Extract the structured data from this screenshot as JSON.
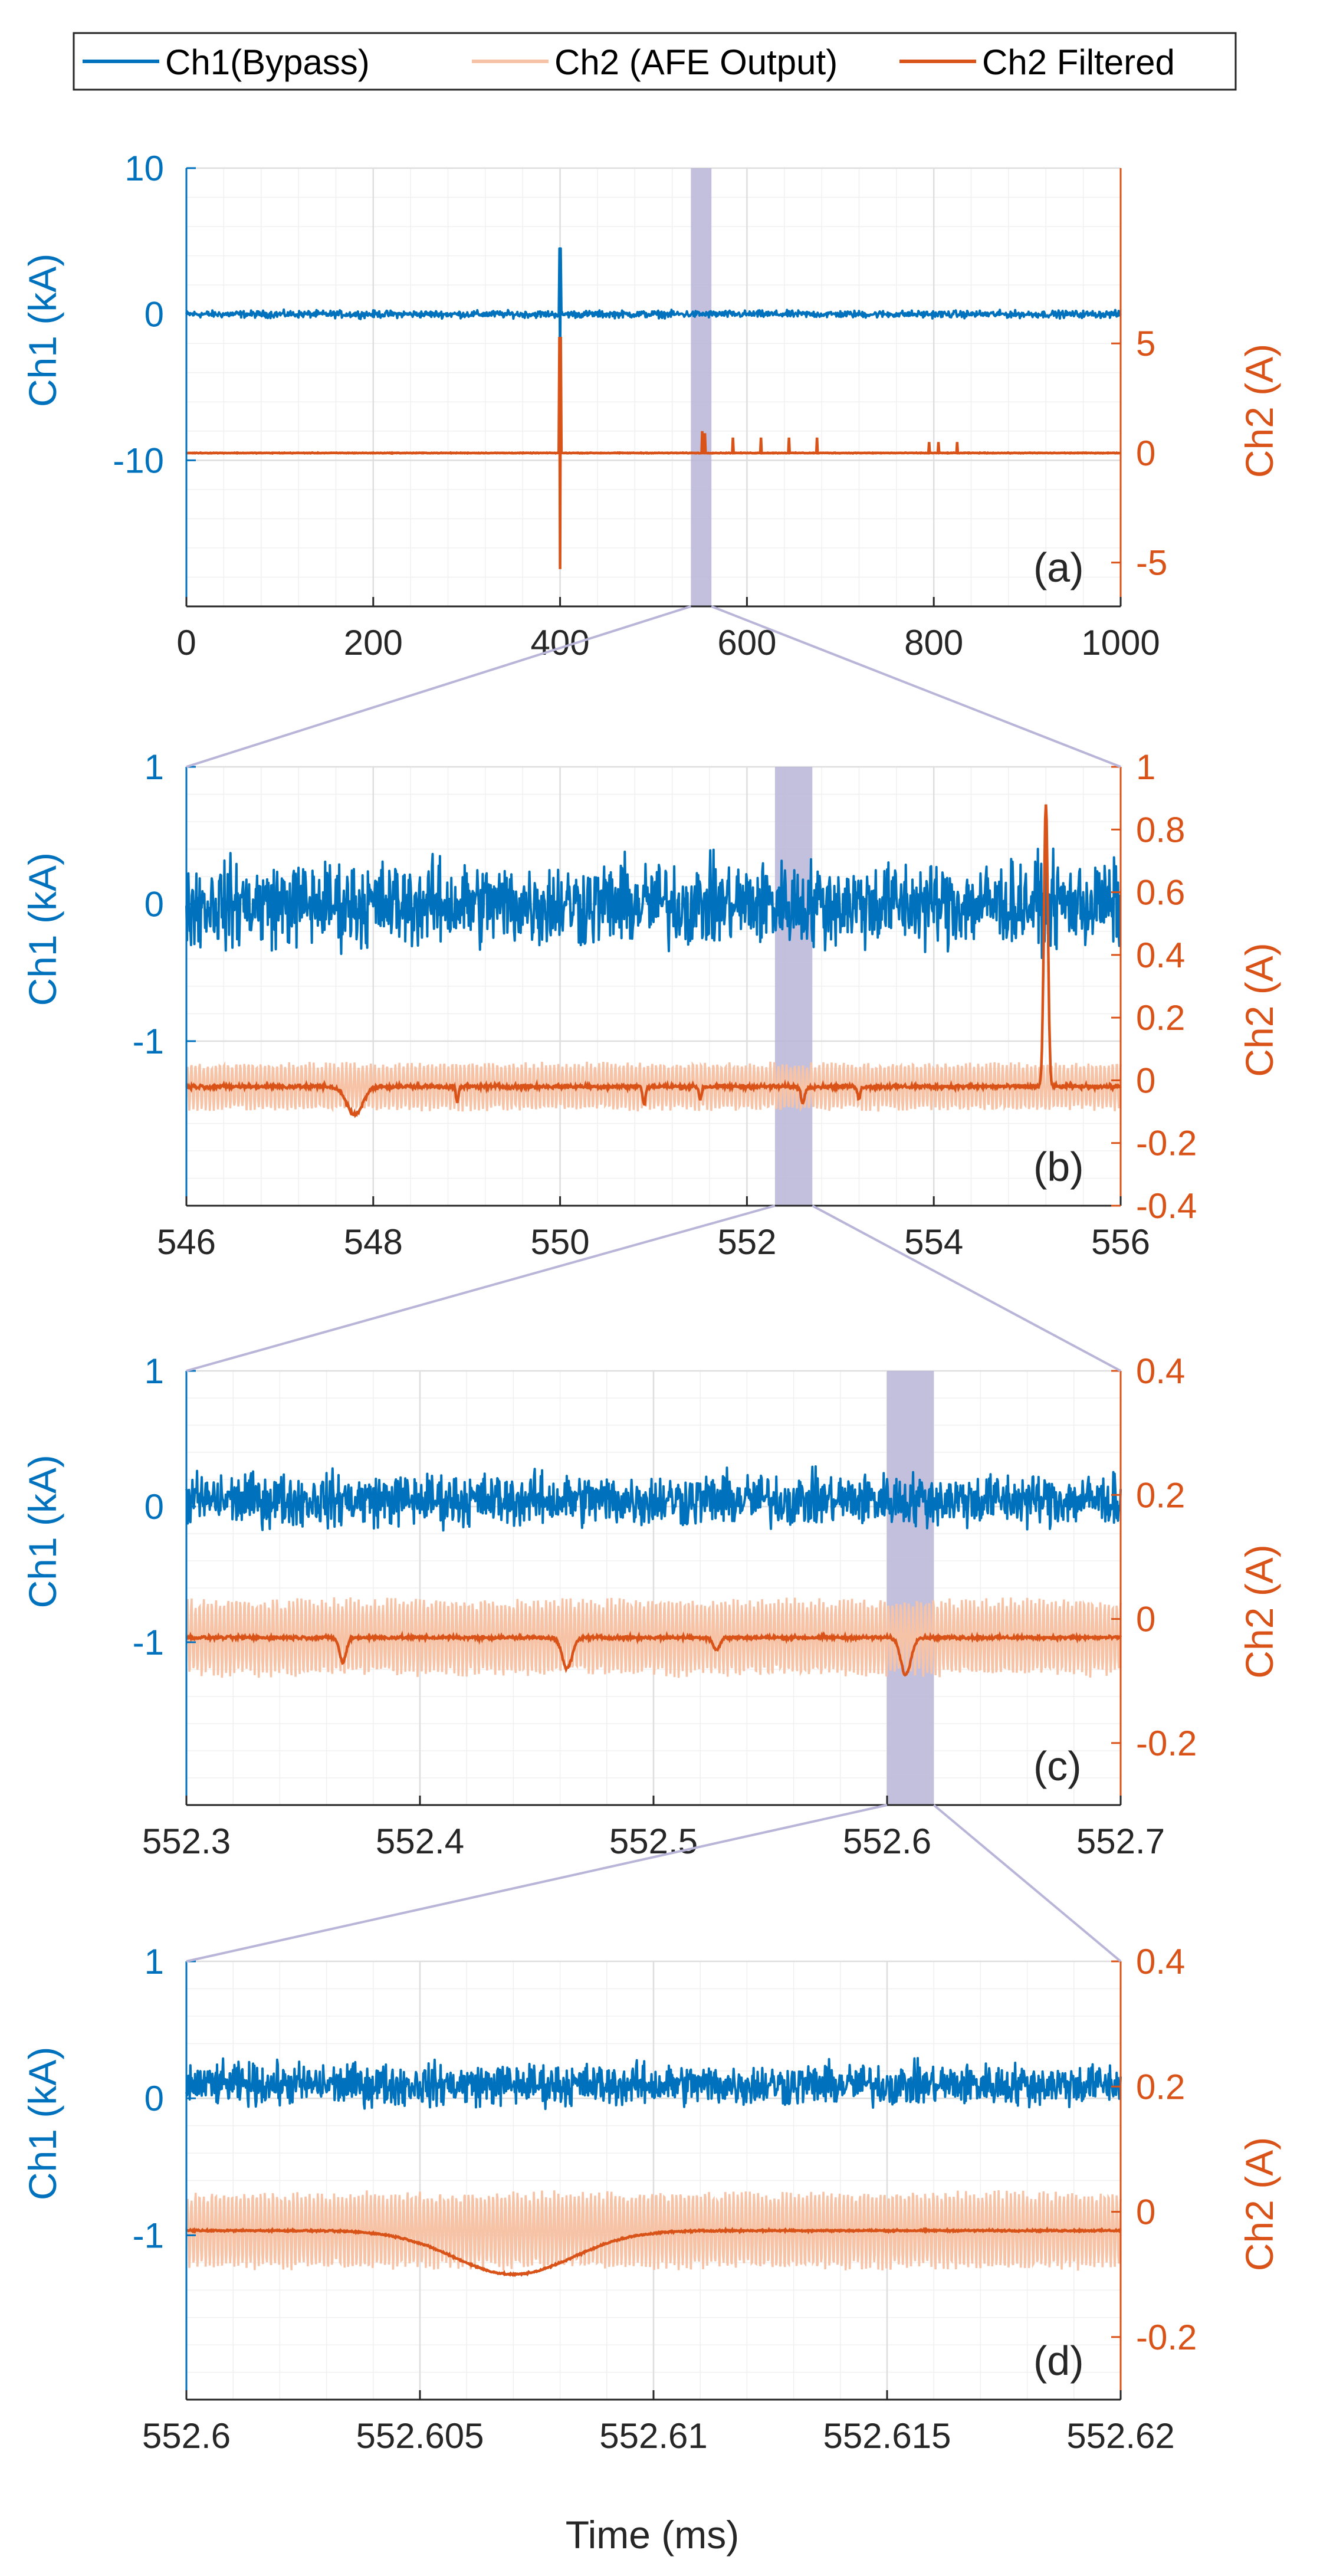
{
  "colors": {
    "ch1": "#0072BD",
    "ch2_raw": "#F7C3A6",
    "ch2_filtered": "#D95319",
    "highlight": "#B8B5D8",
    "grid": "#DEDEDE",
    "axis": "#262626"
  },
  "chart_data": {
    "type": "line",
    "xlabel": "Time (ms)",
    "legend": {
      "placement": "top",
      "entries": [
        "Ch1(Bypass)",
        "Ch2 (AFE Output)",
        "Ch2 Filtered"
      ]
    },
    "panels": [
      {
        "label": "(a)",
        "x_range": [
          0,
          1000
        ],
        "x_ticks": [
          "0",
          "200",
          "400",
          "600",
          "800",
          "1000"
        ],
        "ch1_ylabel": "Ch1 (kA)",
        "ch1_range": [
          -20,
          10
        ],
        "ch1_ticks": [
          "10",
          "0",
          "-10"
        ],
        "ch2_ylabel": "Ch2 (A)",
        "ch2_range": [
          -7,
          13
        ],
        "ch2_ticks": [
          "5",
          "0",
          "-5"
        ],
        "zoom_window": [
          540,
          562
        ],
        "ch1_baseline": 0,
        "ch1_noise": 0.35,
        "ch2_baseline": 0,
        "ch1_spikes": [
          {
            "t": 400,
            "min": -6,
            "max": 4.5
          }
        ],
        "ch2_spikes": [
          {
            "t": 400,
            "min": -5.3,
            "max": 5.3
          },
          {
            "t": 552,
            "min": 0,
            "max": 1.0
          },
          {
            "t": 555,
            "min": 0,
            "max": 0.9
          },
          {
            "t": 585,
            "min": 0,
            "max": 0.7
          },
          {
            "t": 615,
            "min": 0,
            "max": 0.7
          },
          {
            "t": 645,
            "min": 0,
            "max": 0.7
          },
          {
            "t": 675,
            "min": 0,
            "max": 0.7
          },
          {
            "t": 795,
            "min": 0,
            "max": 0.5
          },
          {
            "t": 805,
            "min": 0,
            "max": 0.5
          },
          {
            "t": 825,
            "min": 0,
            "max": 0.5
          }
        ]
      },
      {
        "label": "(b)",
        "x_range": [
          546,
          556
        ],
        "x_ticks": [
          "546",
          "548",
          "550",
          "552",
          "554",
          "556"
        ],
        "ch1_ylabel": "Ch1 (kA)",
        "ch1_range": [
          -2.2,
          1
        ],
        "ch1_ticks": [
          "1",
          "0",
          "-1"
        ],
        "ch2_ylabel": "Ch2 (A)",
        "ch2_range": [
          -0.4,
          1
        ],
        "ch2_ticks": [
          "1",
          "0.8",
          "0.6",
          "0.4",
          "0.2",
          "0",
          "-0.2",
          "-0.4"
        ],
        "zoom_window": [
          552.3,
          552.7
        ],
        "ch1_baseline": 0,
        "ch1_noise": 0.45,
        "ch2_baseline": -0.02,
        "ch2_raw_amp": 0.08,
        "ch2_filt_noise": 0.01,
        "ch2_filtered_events": [
          {
            "t": 547.8,
            "d": -0.09,
            "w": 0.12
          },
          {
            "t": 548.9,
            "d": -0.05,
            "w": 0.02
          },
          {
            "t": 550.9,
            "d": -0.06,
            "w": 0.02
          },
          {
            "t": 551.5,
            "d": -0.04,
            "w": 0.02
          },
          {
            "t": 552.6,
            "d": -0.05,
            "w": 0.03
          },
          {
            "t": 553.2,
            "d": -0.04,
            "w": 0.02
          },
          {
            "t": 555.2,
            "d": 0.9,
            "w": 0.03
          }
        ]
      },
      {
        "label": "(c)",
        "x_range": [
          552.3,
          552.7
        ],
        "x_ticks": [
          "552.3",
          "552.4",
          "552.5",
          "552.6",
          "552.7"
        ],
        "ch1_ylabel": "Ch1 (kA)",
        "ch1_range": [
          -2.2,
          1
        ],
        "ch1_ticks": [
          "1",
          "0",
          "-1"
        ],
        "ch2_ylabel": "Ch2 (A)",
        "ch2_range": [
          -0.3,
          0.4
        ],
        "ch2_ticks": [
          "0.4",
          "0.2",
          "0",
          "-0.2"
        ],
        "zoom_window": [
          552.6,
          552.62
        ],
        "ch1_baseline": 0.05,
        "ch1_noise": 0.28,
        "ch2_baseline": -0.03,
        "ch2_raw_amp": 0.065,
        "ch2_filt_noise": 0.004,
        "ch2_filtered_events": [
          {
            "t": 552.367,
            "d": -0.04,
            "w": 0.002
          },
          {
            "t": 552.463,
            "d": -0.05,
            "w": 0.003
          },
          {
            "t": 552.527,
            "d": -0.02,
            "w": 0.002
          },
          {
            "t": 552.608,
            "d": -0.06,
            "w": 0.003
          }
        ]
      },
      {
        "label": "(d)",
        "x_range": [
          552.6,
          552.62
        ],
        "x_ticks": [
          "552.6",
          "552.605",
          "552.61",
          "552.615",
          "552.62"
        ],
        "ch1_ylabel": "Ch1 (kA)",
        "ch1_range": [
          -2.2,
          1
        ],
        "ch1_ticks": [
          "1",
          "0",
          "-1"
        ],
        "ch2_ylabel": "Ch2 (A)",
        "ch2_range": [
          -0.3,
          0.4
        ],
        "ch2_ticks": [
          "0.4",
          "0.2",
          "0",
          "-0.2"
        ],
        "ch1_baseline": 0.1,
        "ch1_noise": 0.22,
        "ch2_baseline": -0.03,
        "ch2_raw_amp": 0.065,
        "ch2_filt_noise": 0.002,
        "ch2_filtered_events": [
          {
            "t": 552.607,
            "d": -0.07,
            "w": 0.0018
          }
        ]
      }
    ]
  }
}
